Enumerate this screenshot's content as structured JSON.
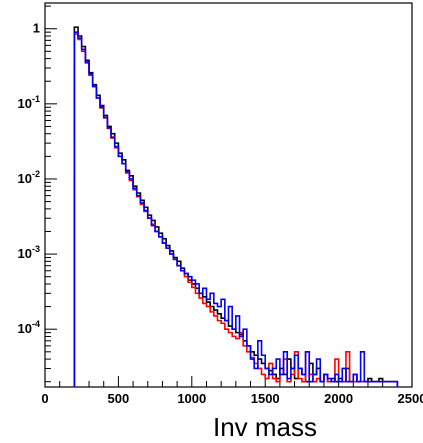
{
  "chart_data": {
    "type": "histogram",
    "title": "",
    "xlabel": "Inv mass",
    "ylabel": "",
    "x_ticks": [
      0,
      500,
      1000,
      1500,
      2000,
      2500
    ],
    "x_tick_labels": [
      "0",
      "500",
      "1000",
      "1500",
      "2000",
      "2500"
    ],
    "y_scale": "log",
    "y_ticks": [
      0.0001,
      0.001,
      0.01,
      0.1,
      1
    ],
    "y_tick_labels": [
      {
        "base": "10",
        "exp": "-4"
      },
      {
        "base": "10",
        "exp": "-3"
      },
      {
        "base": "10",
        "exp": "-2"
      },
      {
        "base": "10",
        "exp": "-1"
      },
      {
        "base": "1",
        "exp": ""
      }
    ],
    "xlim": [
      0,
      2500
    ],
    "ylim": [
      1.7e-05,
      2.2
    ],
    "bin_width": 25,
    "series": [
      {
        "color": "#000000",
        "x_start": 200,
        "values": [
          1.05,
          0.8,
          0.58,
          0.38,
          0.26,
          0.18,
          0.13,
          0.095,
          0.07,
          0.05,
          0.04,
          0.03,
          0.022,
          0.018,
          0.013,
          0.011,
          0.008,
          0.0065,
          0.0052,
          0.0042,
          0.0033,
          0.0028,
          0.0023,
          0.0019,
          0.0016,
          0.0013,
          0.0011,
          0.0009,
          0.0008,
          0.00065,
          0.00055,
          0.00045,
          0.0004,
          0.00035,
          0.0003,
          0.00027,
          0.00023,
          0.0002,
          0.00018,
          0.00016,
          0.00014,
          0.00013,
          0.00011,
          0.0001,
          9e-05,
          8.5e-05,
          7e-05,
          6e-05,
          5e-05,
          4.5e-05,
          4e-05,
          3.5e-05,
          3e-05,
          2.8e-05,
          2.5e-05,
          2.2e-05,
          3e-05,
          2.5e-05,
          4e-05,
          3e-05,
          2.2e-05,
          3e-05,
          2.5e-05,
          2e-05,
          3.5e-05,
          2.5e-05,
          3e-05,
          2e-05,
          2.5e-05,
          2e-05,
          2.2e-05,
          2e-05,
          2.2e-05,
          2e-05,
          3e-05,
          2e-05,
          2.5e-05,
          2e-05,
          2e-05,
          2e-05,
          2.2e-05,
          2e-05,
          2e-05,
          2.2e-05,
          2e-05,
          2e-05,
          2e-05,
          2e-05
        ]
      },
      {
        "color": "#ff0000",
        "x_start": 200,
        "values": [
          0.85,
          0.72,
          0.5,
          0.35,
          0.24,
          0.17,
          0.12,
          0.088,
          0.065,
          0.047,
          0.035,
          0.026,
          0.02,
          0.016,
          0.012,
          0.0095,
          0.0072,
          0.0058,
          0.0046,
          0.0037,
          0.003,
          0.0025,
          0.002,
          0.0017,
          0.0014,
          0.0012,
          0.001,
          0.00085,
          0.0007,
          0.0006,
          0.0005,
          0.00042,
          0.00036,
          0.0003,
          0.00026,
          0.00022,
          0.0002,
          0.00017,
          0.00015,
          0.00013,
          0.00012,
          0.0001,
          9e-05,
          8e-05,
          7.5e-05,
          9e-05,
          6e-05,
          5e-05,
          4.2e-05,
          3.5e-05,
          3e-05,
          2.5e-05,
          2.2e-05,
          3.5e-05,
          2.2e-05,
          2e-05,
          2.5e-05,
          4e-05,
          2e-05,
          2.5e-05,
          5e-05,
          2.2e-05,
          2e-05,
          5e-05,
          2.5e-05,
          2e-05,
          2.2e-05,
          2e-05,
          2.5e-05,
          2e-05,
          2e-05,
          4e-05,
          2e-05,
          2e-05,
          5e-05,
          2e-05,
          2e-05,
          2e-05,
          2e-05,
          2e-05,
          2e-05,
          2e-05,
          2e-05,
          2e-05,
          2e-05,
          2e-05,
          2e-05,
          2e-05
        ]
      },
      {
        "color": "#0000ff",
        "x_start": 200,
        "values": [
          0.9,
          0.75,
          0.53,
          0.36,
          0.25,
          0.17,
          0.12,
          0.09,
          0.066,
          0.048,
          0.036,
          0.027,
          0.02,
          0.016,
          0.0125,
          0.01,
          0.0075,
          0.006,
          0.0048,
          0.0038,
          0.003,
          0.0024,
          0.002,
          0.0017,
          0.0014,
          0.0012,
          0.001,
          0.00085,
          0.0007,
          0.0006,
          0.00055,
          0.0005,
          0.00045,
          0.0004,
          0.0003,
          0.00035,
          0.00025,
          0.0003,
          0.00022,
          0.0002,
          0.00025,
          0.00013,
          0.0002,
          0.0001,
          0.00015,
          8e-05,
          0.0001,
          6e-05,
          4e-05,
          3e-05,
          7e-05,
          4.5e-05,
          3e-05,
          2.5e-05,
          3e-05,
          4e-05,
          2.5e-05,
          5e-05,
          2.2e-05,
          3e-05,
          4.5e-05,
          3e-05,
          2.5e-05,
          5e-05,
          2e-05,
          2.5e-05,
          4e-05,
          2e-05,
          2.5e-05,
          2.2e-05,
          2e-05,
          2.5e-05,
          2e-05,
          3e-05,
          2e-05,
          2e-05,
          2.5e-05,
          2e-05,
          5e-05,
          2e-05,
          2e-05,
          2e-05,
          2e-05,
          2e-05,
          2e-05,
          2e-05,
          2e-05,
          2e-05
        ]
      }
    ]
  }
}
